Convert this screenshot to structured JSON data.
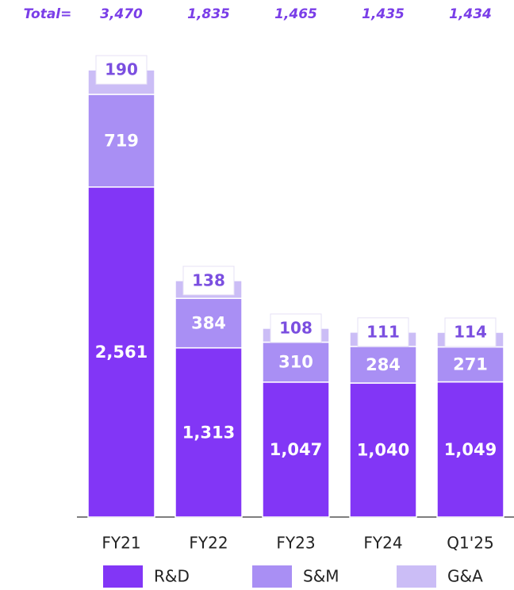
{
  "chart_data": {
    "type": "stacked_bar",
    "categories": [
      "FY21",
      "FY22",
      "FY23",
      "FY24",
      "Q1'25"
    ],
    "series": [
      {
        "name": "R&D",
        "color": "#8236f6",
        "values": [
          2561,
          1313,
          1047,
          1040,
          1049
        ],
        "value_labels": [
          "2,561",
          "1,313",
          "1,047",
          "1,040",
          "1,049"
        ]
      },
      {
        "name": "S&M",
        "color": "#a98ff4",
        "values": [
          719,
          384,
          310,
          284,
          271
        ]
      },
      {
        "name": "G&A",
        "color": "#cbbdf6",
        "values": [
          190,
          138,
          108,
          111,
          114
        ]
      }
    ],
    "totals_title": "Total=",
    "totals": [
      3470,
      1835,
      1465,
      1435,
      1434
    ],
    "totals_labels": [
      "3,470",
      "1,835",
      "1,465",
      "1,435",
      "1,434"
    ],
    "ylim": [
      0,
      3500
    ]
  }
}
